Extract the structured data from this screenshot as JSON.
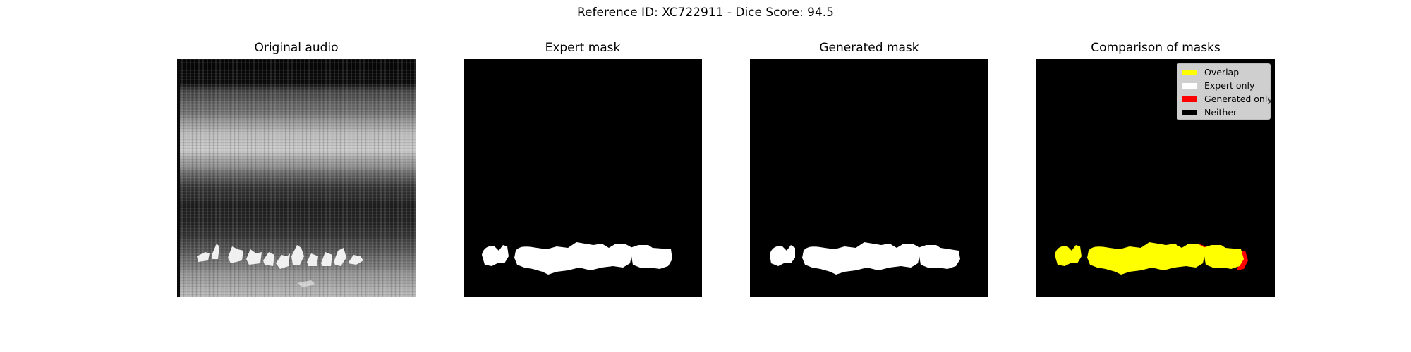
{
  "figure": {
    "title": "Reference ID: XC722911 - Dice Score: 94.5"
  },
  "panels": [
    {
      "title": "Original audio"
    },
    {
      "title": "Expert mask"
    },
    {
      "title": "Generated mask"
    },
    {
      "title": "Comparison of masks"
    }
  ],
  "legend": {
    "entries": [
      {
        "label": "Overlap",
        "color": "#ffff00"
      },
      {
        "label": "Expert only",
        "color": "#ffffff"
      },
      {
        "label": "Generated only",
        "color": "#ff0000"
      },
      {
        "label": "Neither",
        "color": "#000000"
      }
    ]
  },
  "colors": {
    "mask_foreground": "#ffffff",
    "mask_background": "#000000",
    "overlap": "#ffff00",
    "generated_only": "#ff0000"
  }
}
